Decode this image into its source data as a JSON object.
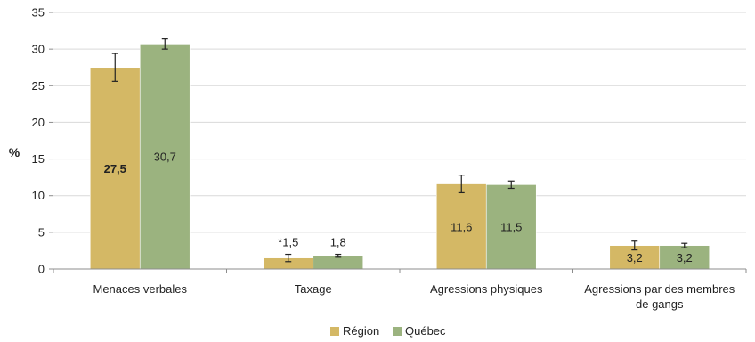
{
  "chart_data": {
    "type": "bar",
    "ylabel": "%",
    "ylim": [
      0,
      35
    ],
    "yticks": [
      0,
      5,
      10,
      15,
      20,
      25,
      30,
      35
    ],
    "grid": true,
    "legend_position": "bottom",
    "categories": [
      [
        "Menaces verbales"
      ],
      [
        "Taxage"
      ],
      [
        "Agressions physiques"
      ],
      [
        "Agressions par des membres",
        "de gangs"
      ]
    ],
    "series": [
      {
        "name": "Région",
        "color": "#D4B865",
        "values": [
          27.5,
          1.5,
          11.6,
          3.2
        ],
        "labels": [
          "27,5",
          "*1,5",
          "11,6",
          "3,2"
        ],
        "label_bold": [
          true,
          false,
          false,
          false
        ],
        "error": [
          1.9,
          0.5,
          1.2,
          0.6
        ]
      },
      {
        "name": "Québec",
        "color": "#9BB37F",
        "values": [
          30.7,
          1.8,
          11.5,
          3.2
        ],
        "labels": [
          "30,7",
          "1,8",
          "11,5",
          "3,2"
        ],
        "label_bold": [
          false,
          false,
          false,
          false
        ],
        "error": [
          0.7,
          0.2,
          0.5,
          0.3
        ]
      }
    ]
  }
}
